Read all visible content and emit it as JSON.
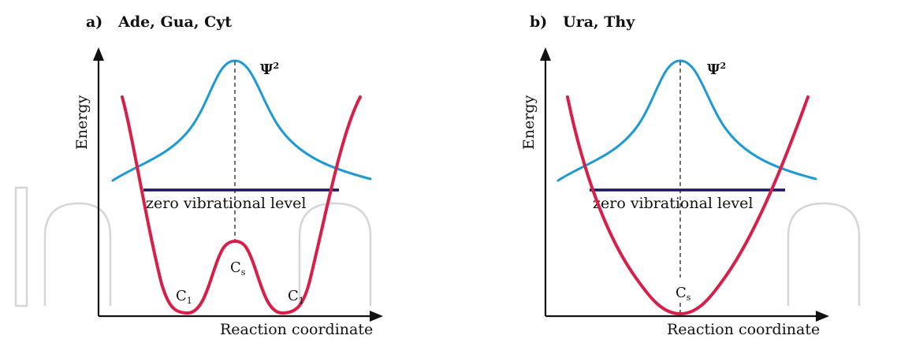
{
  "panel_a": {
    "title": "a)   Ade, Gua, Cyt",
    "y_axis_label": "Energy",
    "x_axis_label": "Reaction coordinate",
    "level_label": "zero vibrational level",
    "psi_label": {
      "base": "Ψ",
      "sup": "2"
    },
    "states": [
      {
        "base": "C",
        "sub": "1"
      },
      {
        "base": "C",
        "sub": "s"
      },
      {
        "base": "C",
        "sub": "1"
      }
    ],
    "colors": {
      "potential": "#d81f48",
      "wavefunction": "#1d9ad6",
      "level": "#1c1464"
    }
  },
  "panel_b": {
    "title": "b)   Ura, Thy",
    "y_axis_label": "Energy",
    "x_axis_label": "Reaction coordinate",
    "level_label": "zero vibrational level",
    "psi_label": {
      "base": "Ψ",
      "sup": "2"
    },
    "states": [
      {
        "base": "C",
        "sub": "s"
      }
    ],
    "colors": {
      "potential": "#d81f48",
      "wavefunction": "#1d9ad6",
      "level": "#1c1464"
    }
  }
}
